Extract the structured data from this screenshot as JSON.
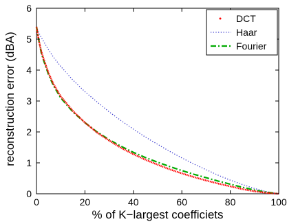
{
  "chart_data": {
    "type": "line",
    "title": "",
    "xlabel": "% of K−largest coefficiets",
    "ylabel": "reconstruction error (dBA)",
    "xlim": [
      0,
      100
    ],
    "ylim": [
      0,
      6
    ],
    "xticks": [
      "0",
      "20",
      "40",
      "60",
      "80",
      "100"
    ],
    "yticks": [
      "0",
      "1",
      "2",
      "3",
      "4",
      "5",
      "6"
    ],
    "grid": false,
    "legend_position": "top-right",
    "series": [
      {
        "name": "DCT",
        "color": "#ff0000",
        "style": "dotted-thick",
        "x": [
          0,
          1,
          2,
          3,
          5,
          7,
          10,
          15,
          20,
          25,
          30,
          35,
          40,
          45,
          50,
          55,
          60,
          65,
          70,
          75,
          80,
          85,
          90,
          95,
          98,
          100
        ],
        "y": [
          5.4,
          4.95,
          4.6,
          4.35,
          3.9,
          3.55,
          3.15,
          2.68,
          2.3,
          1.98,
          1.72,
          1.48,
          1.28,
          1.1,
          0.94,
          0.79,
          0.66,
          0.54,
          0.43,
          0.33,
          0.24,
          0.15,
          0.08,
          0.03,
          0.01,
          0.0
        ]
      },
      {
        "name": "Haar",
        "color": "#3333cc",
        "style": "dotted",
        "x": [
          0,
          1,
          2,
          3,
          5,
          7,
          10,
          15,
          20,
          25,
          30,
          35,
          40,
          45,
          50,
          55,
          60,
          65,
          70,
          75,
          80,
          85,
          90,
          95,
          98,
          100
        ],
        "y": [
          5.4,
          5.2,
          5.05,
          4.92,
          4.65,
          4.42,
          4.12,
          3.68,
          3.3,
          2.97,
          2.65,
          2.36,
          2.09,
          1.83,
          1.6,
          1.37,
          1.16,
          0.96,
          0.78,
          0.6,
          0.44,
          0.3,
          0.17,
          0.07,
          0.02,
          0.0
        ]
      },
      {
        "name": "Fourier",
        "color": "#00aa00",
        "style": "dash-dot",
        "x": [
          0,
          1,
          2,
          3,
          5,
          7,
          10,
          15,
          20,
          25,
          30,
          35,
          40,
          45,
          50,
          55,
          60,
          65,
          70,
          75,
          80,
          85,
          90,
          95,
          98,
          100
        ],
        "y": [
          5.4,
          4.95,
          4.55,
          4.3,
          3.85,
          3.5,
          3.1,
          2.65,
          2.3,
          2.0,
          1.75,
          1.53,
          1.34,
          1.17,
          1.02,
          0.88,
          0.75,
          0.63,
          0.52,
          0.41,
          0.31,
          0.21,
          0.12,
          0.05,
          0.02,
          0.0
        ]
      }
    ]
  }
}
